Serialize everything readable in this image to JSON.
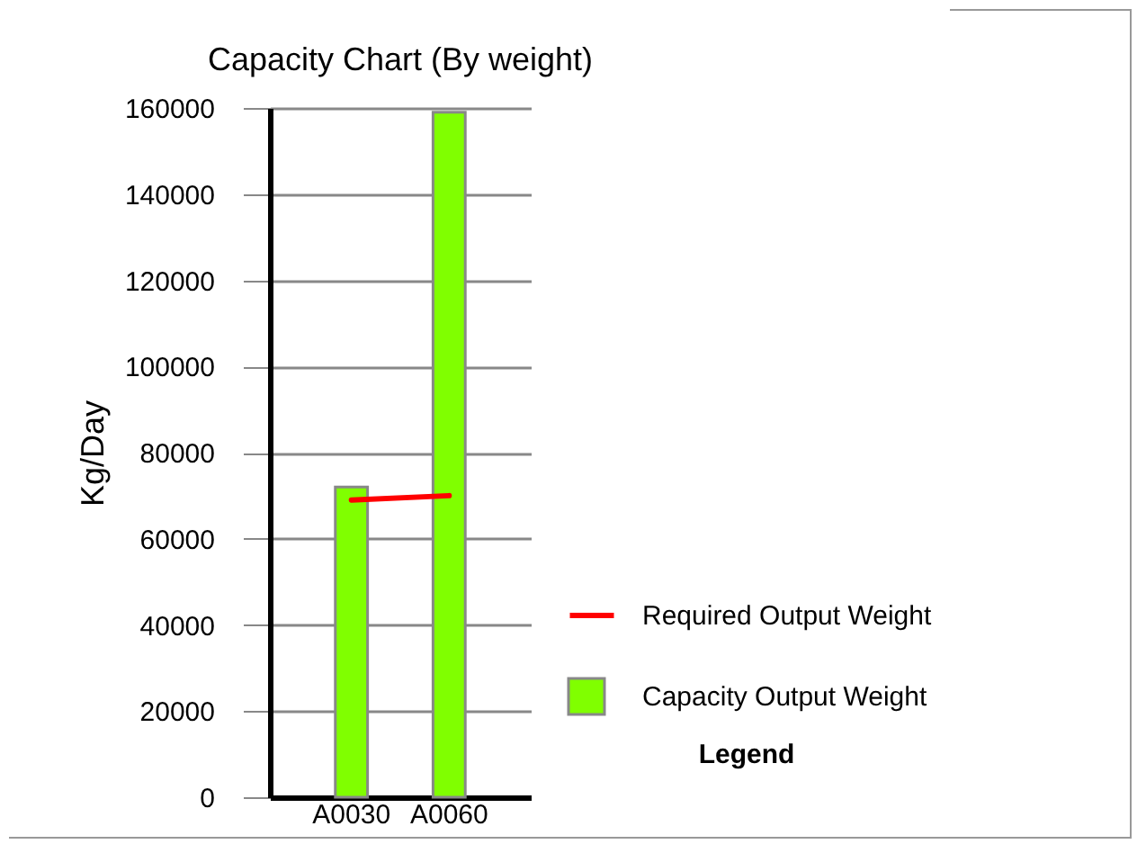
{
  "chart_data": {
    "type": "bar",
    "title": "Capacity Chart (By weight)",
    "ylabel": "Kg/Day",
    "legend_title": "Legend",
    "categories": [
      "A0030",
      "A0060"
    ],
    "series": [
      {
        "name": "Capacity Output Weight",
        "color": "#80ff00",
        "values": [
          72000,
          159000
        ]
      },
      {
        "name": "Required Output Weight",
        "type": "line",
        "color": "#ff0000",
        "values": [
          69000,
          70000
        ]
      }
    ],
    "ylim": [
      0,
      160000
    ],
    "yticks": [
      0,
      20000,
      40000,
      60000,
      80000,
      100000,
      120000,
      140000,
      160000
    ],
    "grid": "y",
    "legend": "bottom right"
  }
}
